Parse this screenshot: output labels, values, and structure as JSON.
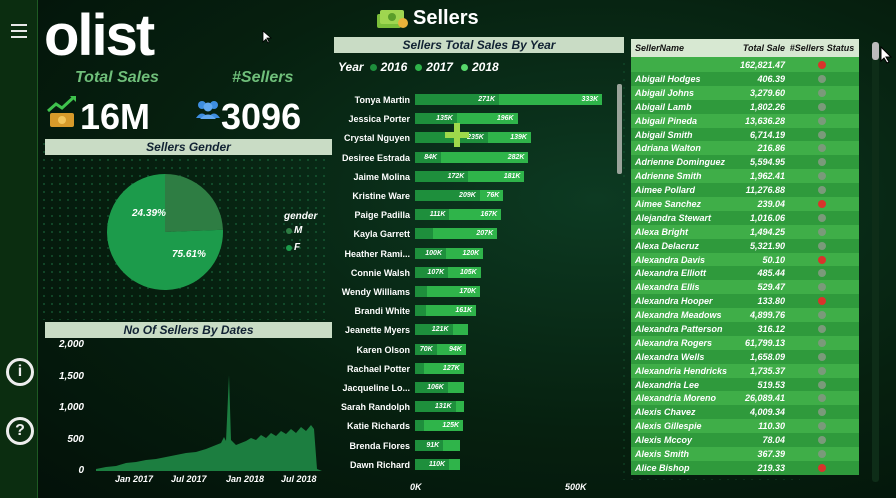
{
  "sidebar": {
    "menu_icon": "hamburger-icon",
    "info_icon": "info-icon",
    "help_icon": "help-icon",
    "info_glyph": "i",
    "help_glyph": "?"
  },
  "logo": "olist",
  "page_title": "Sellers",
  "kpis": {
    "total_sales_label": "Total Sales",
    "total_sales_value": "16M",
    "sellers_label": "#Sellers",
    "sellers_value": "3096"
  },
  "gender_chart": {
    "title": "Sellers Gender",
    "legend_title": "gender",
    "slices": [
      {
        "label": "M",
        "pct": 24.39,
        "pct_label": "24.39%",
        "color": "#2e7d43"
      },
      {
        "label": "F",
        "pct": 75.61,
        "pct_label": "75.61%",
        "color": "#1c9b4b"
      }
    ]
  },
  "dates_chart": {
    "title": "No Of Sellers By Dates",
    "y_ticks": [
      "2,000",
      "1,500",
      "1,000",
      "500",
      "0"
    ],
    "x_ticks": [
      "Jan 2017",
      "Jul 2017",
      "Jan 2018",
      "Jul 2018"
    ]
  },
  "sales_chart": {
    "title": "Sellers Total Sales By Year",
    "legend_label": "Year",
    "years": [
      {
        "label": "2016",
        "color": "#1e8f3c"
      },
      {
        "label": "2017",
        "color": "#2fb44a"
      },
      {
        "label": "2018",
        "color": "#57d96b"
      }
    ],
    "x_axis": [
      "0K",
      "500K"
    ],
    "sellers": [
      {
        "name": "Tonya Martin",
        "segments": [
          {
            "label": "271K",
            "value": 271
          },
          {
            "label": "333K",
            "value": 333
          }
        ]
      },
      {
        "name": "Jessica Porter",
        "segments": [
          {
            "label": "135K",
            "value": 135
          },
          {
            "label": "196K",
            "value": 196
          }
        ]
      },
      {
        "name": "Crystal Nguyen",
        "segments": [
          {
            "label": "235K",
            "value": 235
          },
          {
            "label": "139K",
            "value": 139
          }
        ]
      },
      {
        "name": "Desiree Estrada",
        "segments": [
          {
            "label": "84K",
            "value": 84
          },
          {
            "label": "282K",
            "value": 282
          }
        ]
      },
      {
        "name": "Jaime Molina",
        "segments": [
          {
            "label": "172K",
            "value": 172
          },
          {
            "label": "181K",
            "value": 181
          }
        ]
      },
      {
        "name": "Kristine Ware",
        "segments": [
          {
            "label": "209K",
            "value": 209
          },
          {
            "label": "76K",
            "value": 76
          }
        ]
      },
      {
        "name": "Paige Padilla",
        "segments": [
          {
            "label": "111K",
            "value": 111
          },
          {
            "label": "167K",
            "value": 167
          }
        ]
      },
      {
        "name": "Kayla Garrett",
        "segments": [
          {
            "label": "",
            "value": 58
          },
          {
            "label": "207K",
            "value": 207
          }
        ]
      },
      {
        "name": "Heather Rami...",
        "segments": [
          {
            "label": "100K",
            "value": 100
          },
          {
            "label": "120K",
            "value": 120
          }
        ]
      },
      {
        "name": "Connie Walsh",
        "segments": [
          {
            "label": "107K",
            "value": 107
          },
          {
            "label": "105K",
            "value": 105
          }
        ]
      },
      {
        "name": "Wendy Williams",
        "segments": [
          {
            "label": "",
            "value": 40
          },
          {
            "label": "170K",
            "value": 170
          }
        ]
      },
      {
        "name": "Brandi White",
        "segments": [
          {
            "label": "",
            "value": 36
          },
          {
            "label": "161K",
            "value": 161
          }
        ]
      },
      {
        "name": "Jeanette Myers",
        "segments": [
          {
            "label": "121K",
            "value": 121
          },
          {
            "label": "",
            "value": 50
          }
        ]
      },
      {
        "name": "Karen Olson",
        "segments": [
          {
            "label": "70K",
            "value": 70
          },
          {
            "label": "94K",
            "value": 94
          }
        ]
      },
      {
        "name": "Rachael Potter",
        "segments": [
          {
            "label": "",
            "value": 30
          },
          {
            "label": "127K",
            "value": 127
          }
        ]
      },
      {
        "name": "Jacqueline Lo...",
        "segments": [
          {
            "label": "106K",
            "value": 106
          },
          {
            "label": "",
            "value": 52
          }
        ]
      },
      {
        "name": "Sarah Randolph",
        "segments": [
          {
            "label": "131K",
            "value": 131
          },
          {
            "label": "",
            "value": 28
          }
        ]
      },
      {
        "name": "Katie Richards",
        "segments": [
          {
            "label": "",
            "value": 30
          },
          {
            "label": "125K",
            "value": 125
          }
        ]
      },
      {
        "name": "Brenda Flores",
        "segments": [
          {
            "label": "91K",
            "value": 91
          },
          {
            "label": "",
            "value": 54
          }
        ]
      },
      {
        "name": "Dawn Richard",
        "segments": [
          {
            "label": "110K",
            "value": 110
          },
          {
            "label": "",
            "value": 34
          }
        ]
      }
    ]
  },
  "table": {
    "headers": [
      "SellerName",
      "Total Sale",
      "#Sellers Status"
    ],
    "total": "162,821.47",
    "rows": [
      {
        "name": "Abigail Hodges",
        "sale": "406.39",
        "status": "#7a9a7a"
      },
      {
        "name": "Abigail Johns",
        "sale": "3,279.60",
        "status": "#7a9a7a"
      },
      {
        "name": "Abigail Lamb",
        "sale": "1,802.26",
        "status": "#7a9a7a"
      },
      {
        "name": "Abigail Pineda",
        "sale": "13,636.28",
        "status": "#7a9a7a"
      },
      {
        "name": "Abigail Smith",
        "sale": "6,714.19",
        "status": "#7a9a7a"
      },
      {
        "name": "Adriana Walton",
        "sale": "216.86",
        "status": "#7a9a7a"
      },
      {
        "name": "Adrienne Dominguez",
        "sale": "5,594.95",
        "status": "#7a9a7a"
      },
      {
        "name": "Adrienne Smith",
        "sale": "1,962.41",
        "status": "#7a9a7a"
      },
      {
        "name": "Aimee Pollard",
        "sale": "11,276.88",
        "status": "#7a9a7a"
      },
      {
        "name": "Aimee Sanchez",
        "sale": "239.04",
        "status": "#d9332b"
      },
      {
        "name": "Alejandra Stewart",
        "sale": "1,016.06",
        "status": "#7a9a7a"
      },
      {
        "name": "Alexa Bright",
        "sale": "1,494.25",
        "status": "#7a9a7a"
      },
      {
        "name": "Alexa Delacruz",
        "sale": "5,321.90",
        "status": "#7a9a7a"
      },
      {
        "name": "Alexandra Davis",
        "sale": "50.10",
        "status": "#d9332b"
      },
      {
        "name": "Alexandra Elliott",
        "sale": "485.44",
        "status": "#7a9a7a"
      },
      {
        "name": "Alexandra Ellis",
        "sale": "529.47",
        "status": "#7a9a7a"
      },
      {
        "name": "Alexandra Hooper",
        "sale": "133.80",
        "status": "#d9332b"
      },
      {
        "name": "Alexandra Meadows",
        "sale": "4,899.76",
        "status": "#7a9a7a"
      },
      {
        "name": "Alexandra Patterson",
        "sale": "316.12",
        "status": "#7a9a7a"
      },
      {
        "name": "Alexandra Rogers",
        "sale": "61,799.13",
        "status": "#7a9a7a"
      },
      {
        "name": "Alexandra Wells",
        "sale": "1,658.09",
        "status": "#7a9a7a"
      },
      {
        "name": "Alexandria Hendricks",
        "sale": "1,735.37",
        "status": "#7a9a7a"
      },
      {
        "name": "Alexandria Lee",
        "sale": "519.53",
        "status": "#7a9a7a"
      },
      {
        "name": "Alexandria Moreno",
        "sale": "26,089.41",
        "status": "#7a9a7a"
      },
      {
        "name": "Alexis Chavez",
        "sale": "4,009.34",
        "status": "#7a9a7a"
      },
      {
        "name": "Alexis Gillespie",
        "sale": "110.30",
        "status": "#7a9a7a"
      },
      {
        "name": "Alexis Mccoy",
        "sale": "78.04",
        "status": "#7a9a7a"
      },
      {
        "name": "Alexis Smith",
        "sale": "367.39",
        "status": "#7a9a7a"
      },
      {
        "name": "Alice Bishop",
        "sale": "219.33",
        "status": "#d9332b"
      }
    ]
  }
}
